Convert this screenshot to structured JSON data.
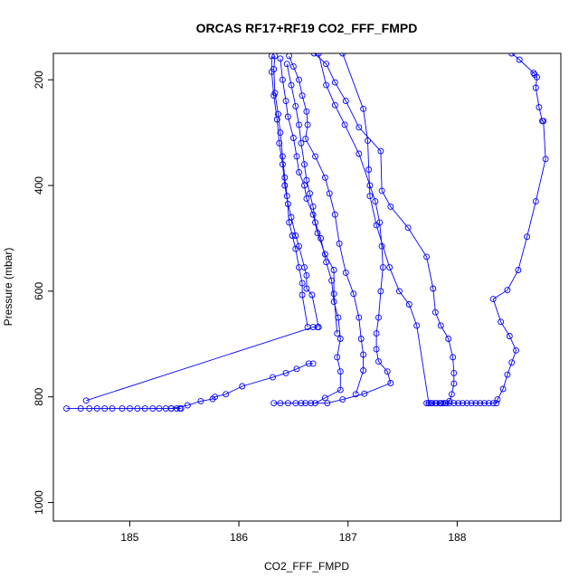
{
  "chart_data": {
    "type": "line",
    "title": "ORCAS RF17+RF19 CO2_FFF_FMPD",
    "xlabel": "CO2_FFF_FMPD",
    "ylabel": "Pressure (mbar)",
    "xlim": [
      184.3,
      188.95
    ],
    "ylim": [
      1035,
      150
    ],
    "y_reversed": true,
    "xticks": [
      185,
      186,
      187,
      188
    ],
    "yticks": [
      200,
      400,
      600,
      800,
      1000
    ],
    "grid": false,
    "marker": "open-circle",
    "colors": {
      "series": "#0000ff",
      "axis": "#000000",
      "background": "#ffffff"
    },
    "series": [
      {
        "points": [
          [
            184.42,
            822
          ],
          [
            184.55,
            822
          ],
          [
            184.63,
            822
          ],
          [
            184.7,
            822
          ],
          [
            184.77,
            822
          ],
          [
            184.84,
            822
          ],
          [
            184.93,
            822
          ],
          [
            185.0,
            822
          ],
          [
            185.07,
            822
          ],
          [
            185.14,
            822
          ],
          [
            185.21,
            822
          ],
          [
            185.27,
            822
          ],
          [
            185.33,
            822
          ],
          [
            185.38,
            822
          ],
          [
            185.43,
            822
          ],
          [
            185.46,
            822
          ],
          [
            185.47,
            822
          ]
        ]
      },
      {
        "points": [
          [
            184.6,
            807
          ],
          [
            186.68,
            668
          ],
          [
            186.72,
            668
          ]
        ]
      },
      {
        "points": [
          [
            185.38,
            822
          ],
          [
            185.53,
            816
          ],
          [
            185.65,
            808
          ],
          [
            185.76,
            804
          ],
          [
            185.78,
            800
          ],
          [
            185.88,
            795
          ],
          [
            186.03,
            780
          ],
          [
            186.31,
            763
          ],
          [
            186.43,
            755
          ],
          [
            186.53,
            747
          ],
          [
            186.64,
            737
          ],
          [
            186.68,
            737
          ]
        ]
      },
      {
        "points": [
          [
            186.32,
            812
          ],
          [
            186.38,
            812
          ],
          [
            186.45,
            812
          ],
          [
            186.52,
            812
          ],
          [
            186.57,
            812
          ],
          [
            186.61,
            812
          ],
          [
            186.66,
            812
          ],
          [
            186.81,
            812
          ],
          [
            186.95,
            805
          ],
          [
            187.15,
            794
          ],
          [
            187.39,
            774
          ],
          [
            187.36,
            752
          ],
          [
            187.28,
            733
          ],
          [
            187.26,
            710
          ],
          [
            187.26,
            680
          ],
          [
            187.28,
            650
          ],
          [
            187.3,
            600
          ],
          [
            187.32,
            555
          ],
          [
            187.31,
            515
          ],
          [
            187.29,
            470
          ],
          [
            187.25,
            430
          ],
          [
            187.2,
            400
          ],
          [
            187.1,
            340
          ],
          [
            186.97,
            285
          ],
          [
            186.88,
            248
          ],
          [
            186.8,
            210
          ],
          [
            186.73,
            150
          ]
        ]
      },
      {
        "points": [
          [
            186.7,
            812
          ],
          [
            186.79,
            802
          ],
          [
            186.93,
            787
          ],
          [
            186.93,
            752
          ],
          [
            186.9,
            725
          ],
          [
            186.93,
            690
          ],
          [
            186.91,
            650
          ],
          [
            186.87,
            620
          ],
          [
            186.85,
            580
          ],
          [
            186.8,
            545
          ],
          [
            186.75,
            500
          ],
          [
            186.7,
            470
          ],
          [
            186.68,
            440
          ],
          [
            186.65,
            415
          ],
          [
            186.62,
            390
          ],
          [
            186.6,
            360
          ],
          [
            186.57,
            320
          ],
          [
            186.55,
            285
          ],
          [
            186.52,
            250
          ],
          [
            186.48,
            210
          ],
          [
            186.44,
            170
          ]
        ]
      },
      {
        "points": [
          [
            187.07,
            795
          ],
          [
            187.14,
            750
          ],
          [
            187.14,
            720
          ],
          [
            187.12,
            690
          ],
          [
            187.1,
            650
          ],
          [
            187.05,
            605
          ],
          [
            186.98,
            565
          ],
          [
            186.92,
            510
          ],
          [
            186.88,
            455
          ],
          [
            186.83,
            415
          ],
          [
            186.79,
            385
          ],
          [
            186.7,
            345
          ],
          [
            186.61,
            312
          ],
          [
            186.63,
            285
          ],
          [
            186.62,
            260
          ],
          [
            186.58,
            230
          ],
          [
            186.55,
            200
          ],
          [
            186.5,
            175
          ],
          [
            186.46,
            155
          ]
        ]
      },
      {
        "points": [
          [
            186.9,
            680
          ],
          [
            186.87,
            605
          ],
          [
            186.87,
            560
          ],
          [
            186.79,
            530
          ],
          [
            186.72,
            490
          ],
          [
            186.68,
            455
          ],
          [
            186.62,
            425
          ],
          [
            186.6,
            400
          ],
          [
            186.55,
            375
          ],
          [
            186.53,
            345
          ],
          [
            186.5,
            310
          ],
          [
            186.45,
            270
          ],
          [
            186.43,
            240
          ],
          [
            186.4,
            200
          ],
          [
            186.38,
            160
          ]
        ]
      },
      {
        "points": [
          [
            186.73,
            668
          ],
          [
            186.67,
            607
          ],
          [
            186.62,
            595
          ],
          [
            186.62,
            570
          ],
          [
            186.6,
            555
          ],
          [
            186.55,
            515
          ],
          [
            186.52,
            495
          ],
          [
            186.48,
            460
          ],
          [
            186.45,
            435
          ],
          [
            186.42,
            400
          ],
          [
            186.4,
            360
          ],
          [
            186.37,
            320
          ],
          [
            186.35,
            275
          ],
          [
            186.32,
            230
          ],
          [
            186.3,
            185
          ],
          [
            186.3,
            155
          ]
        ]
      },
      {
        "points": [
          [
            186.63,
            668
          ],
          [
            186.58,
            607
          ],
          [
            186.58,
            585
          ],
          [
            186.55,
            555
          ],
          [
            186.52,
            520
          ],
          [
            186.49,
            495
          ],
          [
            186.46,
            470
          ],
          [
            186.44,
            420
          ],
          [
            186.42,
            385
          ],
          [
            186.4,
            345
          ],
          [
            186.38,
            300
          ],
          [
            186.36,
            265
          ],
          [
            186.33,
            225
          ],
          [
            186.32,
            180
          ],
          [
            186.33,
            155
          ]
        ]
      },
      {
        "points": [
          [
            187.72,
            812
          ],
          [
            187.76,
            812
          ],
          [
            187.8,
            812
          ],
          [
            187.84,
            812
          ],
          [
            187.87,
            812
          ],
          [
            187.9,
            812
          ],
          [
            187.93,
            808
          ],
          [
            187.95,
            795
          ],
          [
            187.97,
            775
          ],
          [
            187.97,
            755
          ],
          [
            187.96,
            725
          ],
          [
            187.92,
            690
          ],
          [
            187.85,
            665
          ],
          [
            187.8,
            640
          ],
          [
            187.78,
            595
          ],
          [
            187.72,
            535
          ],
          [
            187.55,
            480
          ],
          [
            187.39,
            440
          ],
          [
            187.31,
            410
          ],
          [
            187.3,
            335
          ],
          [
            187.1,
            290
          ],
          [
            186.98,
            240
          ],
          [
            186.88,
            205
          ],
          [
            186.8,
            170
          ],
          [
            186.69,
            150
          ]
        ]
      },
      {
        "points": [
          [
            187.74,
            812
          ],
          [
            187.63,
            665
          ],
          [
            187.56,
            625
          ],
          [
            187.47,
            600
          ],
          [
            187.38,
            555
          ],
          [
            187.26,
            475
          ],
          [
            187.2,
            420
          ],
          [
            187.19,
            370
          ],
          [
            187.18,
            315
          ],
          [
            187.14,
            255
          ],
          [
            186.95,
            150
          ]
        ]
      },
      {
        "points": [
          [
            187.74,
            812
          ],
          [
            187.77,
            812
          ],
          [
            187.81,
            812
          ],
          [
            187.85,
            812
          ],
          [
            187.89,
            812
          ],
          [
            187.93,
            812
          ],
          [
            187.97,
            812
          ],
          [
            188.01,
            812
          ],
          [
            188.05,
            812
          ],
          [
            188.09,
            812
          ],
          [
            188.13,
            812
          ],
          [
            188.17,
            812
          ],
          [
            188.21,
            812
          ],
          [
            188.25,
            812
          ],
          [
            188.29,
            812
          ],
          [
            188.33,
            812
          ],
          [
            188.36,
            812
          ],
          [
            188.37,
            805
          ],
          [
            188.42,
            785
          ],
          [
            188.46,
            758
          ],
          [
            188.5,
            735
          ],
          [
            188.54,
            712
          ],
          [
            188.48,
            685
          ],
          [
            188.4,
            658
          ],
          [
            188.33,
            615
          ],
          [
            188.46,
            598
          ],
          [
            188.56,
            560
          ],
          [
            188.64,
            497
          ],
          [
            188.72,
            430
          ],
          [
            188.81,
            350
          ],
          [
            188.79,
            278
          ],
          [
            188.78,
            278
          ],
          [
            188.75,
            252
          ],
          [
            188.72,
            215
          ],
          [
            188.73,
            195
          ],
          [
            188.71,
            190
          ],
          [
            188.7,
            187
          ],
          [
            188.57,
            162
          ],
          [
            188.5,
            150
          ]
        ]
      }
    ]
  }
}
